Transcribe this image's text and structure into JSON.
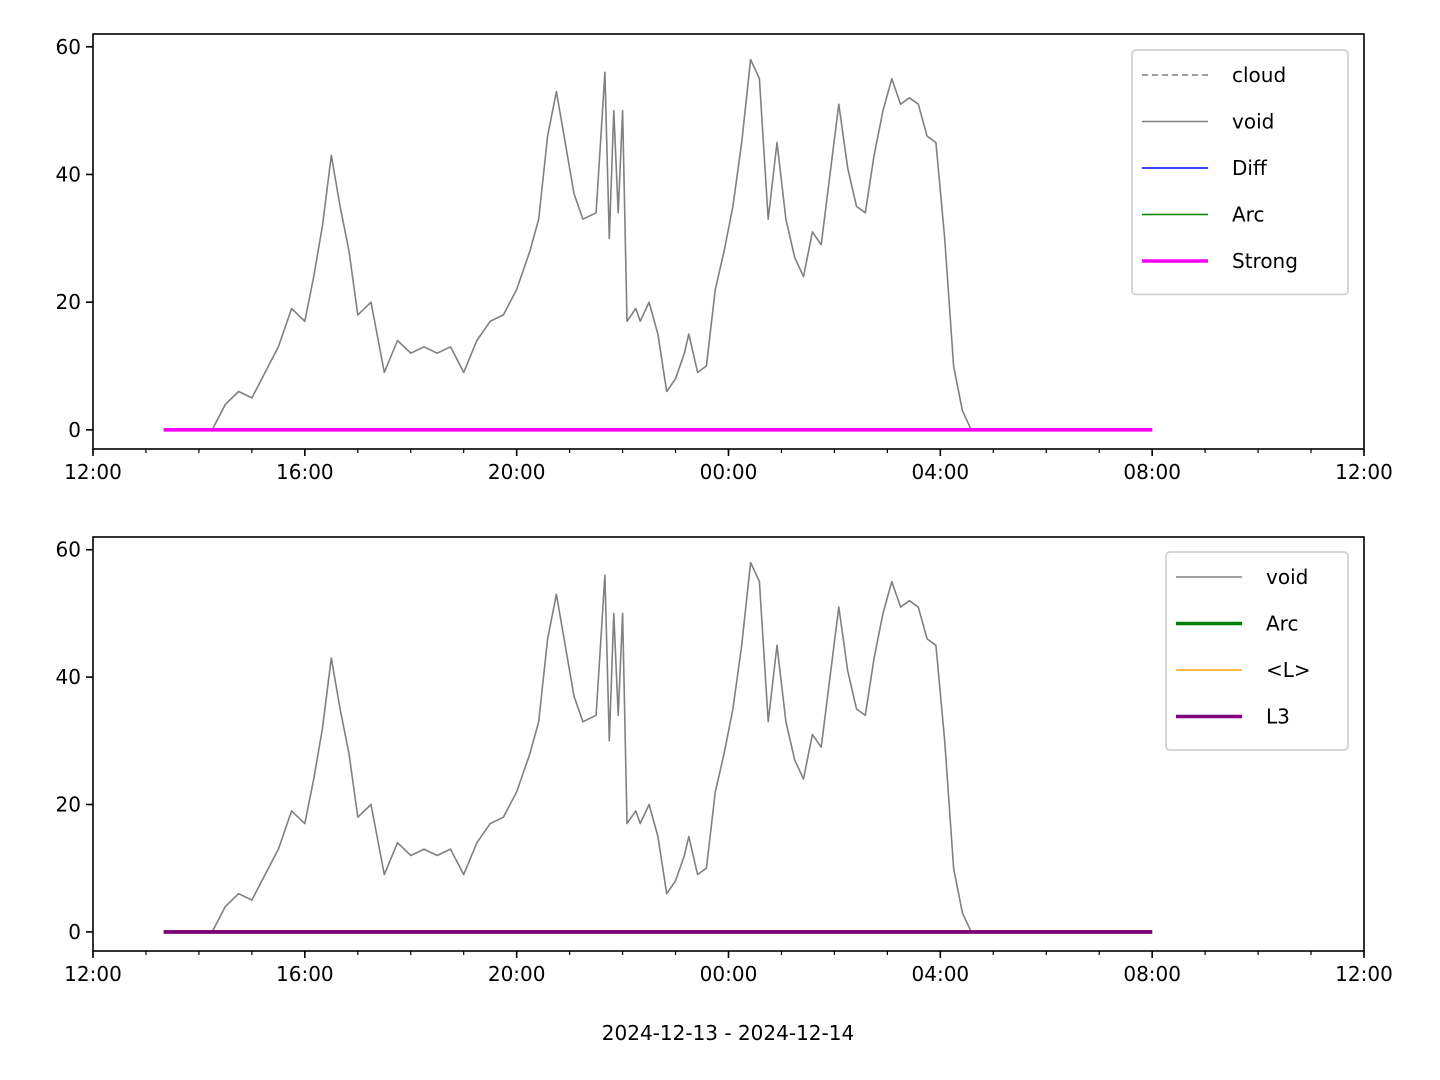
{
  "figure": {
    "xlabel": "2024-12-13 - 2024-12-14"
  },
  "chart_data": [
    {
      "type": "line",
      "title": "",
      "xlabel": "",
      "ylabel": "",
      "x_axis": {
        "type": "time",
        "range": [
          "2024-12-13 12:00",
          "2024-12-14 12:00"
        ],
        "major_ticks": [
          "12:00",
          "16:00",
          "20:00",
          "00:00",
          "04:00",
          "08:00",
          "12:00"
        ],
        "minor_tick_interval_hours": 1
      },
      "y_axis": {
        "range": [
          -3,
          62
        ],
        "ticks": [
          0,
          20,
          40,
          60
        ]
      },
      "grid": false,
      "legend_position": "top-right",
      "series": [
        {
          "name": "cloud",
          "color": "#808080",
          "style": "dashed",
          "x": [
            "2024-12-13 13:20",
            "2024-12-14 08:00"
          ],
          "y": [
            0,
            0
          ]
        },
        {
          "name": "void",
          "color": "#808080",
          "style": "solid",
          "x": [
            "2024-12-13 14:15",
            "2024-12-13 14:30",
            "2024-12-13 14:45",
            "2024-12-13 15:00",
            "2024-12-13 15:15",
            "2024-12-13 15:30",
            "2024-12-13 15:45",
            "2024-12-13 16:00",
            "2024-12-13 16:10",
            "2024-12-13 16:20",
            "2024-12-13 16:30",
            "2024-12-13 16:40",
            "2024-12-13 16:50",
            "2024-12-13 17:00",
            "2024-12-13 17:15",
            "2024-12-13 17:30",
            "2024-12-13 17:45",
            "2024-12-13 18:00",
            "2024-12-13 18:15",
            "2024-12-13 18:30",
            "2024-12-13 18:45",
            "2024-12-13 19:00",
            "2024-12-13 19:15",
            "2024-12-13 19:30",
            "2024-12-13 19:45",
            "2024-12-13 20:00",
            "2024-12-13 20:15",
            "2024-12-13 20:25",
            "2024-12-13 20:35",
            "2024-12-13 20:45",
            "2024-12-13 20:55",
            "2024-12-13 21:05",
            "2024-12-13 21:15",
            "2024-12-13 21:30",
            "2024-12-13 21:40",
            "2024-12-13 21:45",
            "2024-12-13 21:50",
            "2024-12-13 21:55",
            "2024-12-13 22:00",
            "2024-12-13 22:05",
            "2024-12-13 22:10",
            "2024-12-13 22:15",
            "2024-12-13 22:20",
            "2024-12-13 22:30",
            "2024-12-13 22:40",
            "2024-12-13 22:50",
            "2024-12-13 23:00",
            "2024-12-13 23:10",
            "2024-12-13 23:15",
            "2024-12-13 23:25",
            "2024-12-13 23:35",
            "2024-12-13 23:45",
            "2024-12-13 23:55",
            "2024-12-14 00:05",
            "2024-12-14 00:15",
            "2024-12-14 00:25",
            "2024-12-14 00:35",
            "2024-12-14 00:45",
            "2024-12-14 00:55",
            "2024-12-14 01:05",
            "2024-12-14 01:15",
            "2024-12-14 01:25",
            "2024-12-14 01:35",
            "2024-12-14 01:45",
            "2024-12-14 01:55",
            "2024-12-14 02:05",
            "2024-12-14 02:15",
            "2024-12-14 02:25",
            "2024-12-14 02:35",
            "2024-12-14 02:45",
            "2024-12-14 02:55",
            "2024-12-14 03:05",
            "2024-12-14 03:15",
            "2024-12-14 03:25",
            "2024-12-14 03:35",
            "2024-12-14 03:45",
            "2024-12-14 03:55",
            "2024-12-14 04:05",
            "2024-12-14 04:15",
            "2024-12-14 04:25",
            "2024-12-14 04:35",
            "2024-12-14 04:45",
            "2024-12-14 04:50",
            "2024-12-14 04:55",
            "2024-12-14 05:05",
            "2024-12-14 05:15",
            "2024-12-14 05:25",
            "2024-12-14 05:35",
            "2024-12-14 05:45",
            "2024-12-14 05:55",
            "2024-12-14 06:05",
            "2024-12-14 06:15",
            "2024-12-14 06:25",
            "2024-12-14 06:35",
            "2024-12-14 06:45",
            "2024-12-14 06:55",
            "2024-12-14 07:05"
          ],
          "y": [
            0,
            4,
            6,
            5,
            9,
            13,
            19,
            17,
            24,
            32,
            43,
            35,
            28,
            18,
            20,
            9,
            14,
            12,
            13,
            12,
            13,
            9,
            14,
            17,
            18,
            22,
            28,
            33,
            46,
            53,
            45,
            37,
            33,
            34,
            56,
            30,
            50,
            34,
            50,
            17,
            18,
            19,
            17,
            20,
            15,
            6,
            8,
            12,
            15,
            9,
            10,
            22,
            28,
            35,
            45,
            58,
            55,
            33,
            45,
            33,
            27,
            24,
            31,
            29,
            40,
            51,
            41,
            35,
            34,
            43,
            50,
            55,
            51,
            52,
            51,
            46,
            45,
            30,
            10,
            3,
            0,
            0,
            0,
            0,
            0,
            0,
            0,
            0,
            0,
            0,
            0,
            0,
            0,
            0,
            0,
            0,
            0
          ]
        },
        {
          "name": "Diff",
          "color": "#0000ff",
          "style": "solid",
          "x": [
            "2024-12-13 13:20",
            "2024-12-14 08:00"
          ],
          "y": [
            0,
            0
          ]
        },
        {
          "name": "Arc",
          "color": "#008000",
          "style": "solid",
          "x": [
            "2024-12-13 13:20",
            "2024-12-14 08:00"
          ],
          "y": [
            0,
            0
          ]
        },
        {
          "name": "Strong",
          "color": "#ff00ff",
          "style": "solid-thick",
          "x": [
            "2024-12-13 13:20",
            "2024-12-14 08:00"
          ],
          "y": [
            0,
            0
          ]
        }
      ]
    },
    {
      "type": "line",
      "title": "",
      "xlabel": "2024-12-13 - 2024-12-14",
      "ylabel": "",
      "x_axis": {
        "type": "time",
        "range": [
          "2024-12-13 12:00",
          "2024-12-14 12:00"
        ],
        "major_ticks": [
          "12:00",
          "16:00",
          "20:00",
          "00:00",
          "04:00",
          "08:00",
          "12:00"
        ],
        "minor_tick_interval_hours": 1
      },
      "y_axis": {
        "range": [
          -3,
          62
        ],
        "ticks": [
          0,
          20,
          40,
          60
        ]
      },
      "grid": false,
      "legend_position": "top-right",
      "series": [
        {
          "name": "void",
          "color": "#808080",
          "style": "solid",
          "x": [
            "2024-12-13 14:15",
            "2024-12-13 14:30",
            "2024-12-13 14:45",
            "2024-12-13 15:00",
            "2024-12-13 15:15",
            "2024-12-13 15:30",
            "2024-12-13 15:45",
            "2024-12-13 16:00",
            "2024-12-13 16:10",
            "2024-12-13 16:20",
            "2024-12-13 16:30",
            "2024-12-13 16:40",
            "2024-12-13 16:50",
            "2024-12-13 17:00",
            "2024-12-13 17:15",
            "2024-12-13 17:30",
            "2024-12-13 17:45",
            "2024-12-13 18:00",
            "2024-12-13 18:15",
            "2024-12-13 18:30",
            "2024-12-13 18:45",
            "2024-12-13 19:00",
            "2024-12-13 19:15",
            "2024-12-13 19:30",
            "2024-12-13 19:45",
            "2024-12-13 20:00",
            "2024-12-13 20:15",
            "2024-12-13 20:25",
            "2024-12-13 20:35",
            "2024-12-13 20:45",
            "2024-12-13 20:55",
            "2024-12-13 21:05",
            "2024-12-13 21:15",
            "2024-12-13 21:30",
            "2024-12-13 21:40",
            "2024-12-13 21:45",
            "2024-12-13 21:50",
            "2024-12-13 21:55",
            "2024-12-13 22:00",
            "2024-12-13 22:05",
            "2024-12-13 22:10",
            "2024-12-13 22:15",
            "2024-12-13 22:20",
            "2024-12-13 22:30",
            "2024-12-13 22:40",
            "2024-12-13 22:50",
            "2024-12-13 23:00",
            "2024-12-13 23:10",
            "2024-12-13 23:15",
            "2024-12-13 23:25",
            "2024-12-13 23:35",
            "2024-12-13 23:45",
            "2024-12-13 23:55",
            "2024-12-14 00:05",
            "2024-12-14 00:15",
            "2024-12-14 00:25",
            "2024-12-14 00:35",
            "2024-12-14 00:45",
            "2024-12-14 00:55",
            "2024-12-14 01:05",
            "2024-12-14 01:15",
            "2024-12-14 01:25",
            "2024-12-14 01:35",
            "2024-12-14 01:45",
            "2024-12-14 01:55",
            "2024-12-14 02:05",
            "2024-12-14 02:15",
            "2024-12-14 02:25",
            "2024-12-14 02:35",
            "2024-12-14 02:45",
            "2024-12-14 02:55",
            "2024-12-14 03:05",
            "2024-12-14 03:15",
            "2024-12-14 03:25",
            "2024-12-14 03:35",
            "2024-12-14 03:45",
            "2024-12-14 03:55",
            "2024-12-14 04:05",
            "2024-12-14 04:15",
            "2024-12-14 04:25",
            "2024-12-14 04:35",
            "2024-12-14 04:45",
            "2024-12-14 04:50",
            "2024-12-14 04:55",
            "2024-12-14 05:05",
            "2024-12-14 05:15",
            "2024-12-14 05:25",
            "2024-12-14 05:35",
            "2024-12-14 05:45",
            "2024-12-14 05:55",
            "2024-12-14 06:05",
            "2024-12-14 06:15",
            "2024-12-14 06:25",
            "2024-12-14 06:35",
            "2024-12-14 06:45",
            "2024-12-14 06:55",
            "2024-12-14 07:05"
          ],
          "y": [
            0,
            4,
            6,
            5,
            9,
            13,
            19,
            17,
            24,
            32,
            43,
            35,
            28,
            18,
            20,
            9,
            14,
            12,
            13,
            12,
            13,
            9,
            14,
            17,
            18,
            22,
            28,
            33,
            46,
            53,
            45,
            37,
            33,
            34,
            56,
            30,
            50,
            34,
            50,
            17,
            18,
            19,
            17,
            20,
            15,
            6,
            8,
            12,
            15,
            9,
            10,
            22,
            28,
            35,
            45,
            58,
            55,
            33,
            45,
            33,
            27,
            24,
            31,
            29,
            40,
            51,
            41,
            35,
            34,
            43,
            50,
            55,
            51,
            52,
            51,
            46,
            45,
            30,
            10,
            3,
            0,
            0,
            0,
            0,
            0,
            0,
            0,
            0,
            0,
            0,
            0,
            0,
            0,
            0,
            0,
            0,
            0
          ]
        },
        {
          "name": "Arc",
          "color": "#008000",
          "style": "solid-thick",
          "x": [
            "2024-12-13 13:20",
            "2024-12-14 08:00"
          ],
          "y": [
            0,
            0
          ]
        },
        {
          "name": "<L>",
          "color": "#ffa500",
          "style": "solid",
          "x": [
            "2024-12-13 13:20",
            "2024-12-14 08:00"
          ],
          "y": [
            0,
            0
          ]
        },
        {
          "name": "L3",
          "color": "#800080",
          "style": "solid-thick",
          "x": [
            "2024-12-13 13:20",
            "2024-12-14 08:00"
          ],
          "y": [
            0,
            0
          ]
        }
      ]
    }
  ]
}
